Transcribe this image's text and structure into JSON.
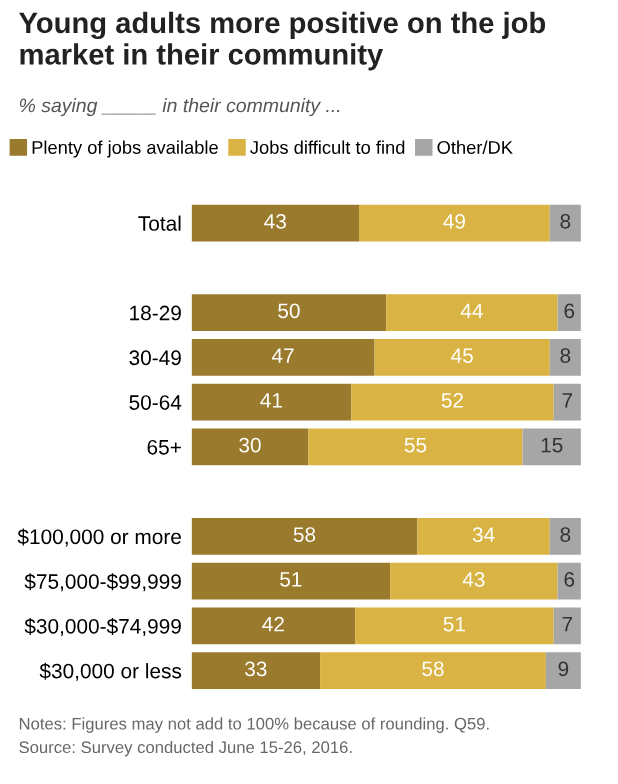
{
  "chart_data": {
    "type": "bar",
    "orientation": "horizontal",
    "stacked": true,
    "data_labels": true,
    "legend": "top",
    "grid": false,
    "title": "Young adults more positive on the job market in their community",
    "subtitle": "% saying _____ in their community ...",
    "categories": [
      "Total",
      null,
      "18-29",
      "30-49",
      "50-64",
      "65+",
      null,
      "$100,000 or more",
      "$75,000-$99,999",
      "$30,000-$74,999",
      "$30,000 or less"
    ],
    "series": [
      {
        "name": "Plenty of jobs available",
        "color": "#9a7b2e",
        "values": [
          43,
          null,
          50,
          47,
          41,
          30,
          null,
          58,
          51,
          42,
          33
        ]
      },
      {
        "name": "Jobs difficult to find",
        "color": "#d9b343",
        "values": [
          49,
          null,
          44,
          45,
          52,
          55,
          null,
          34,
          43,
          51,
          58
        ]
      },
      {
        "name": "Other/DK",
        "color": "#a6a6a6",
        "values": [
          8,
          null,
          6,
          8,
          7,
          15,
          null,
          8,
          6,
          7,
          9
        ]
      }
    ],
    "annotations": [
      "Notes: Figures may not add to 100% because of rounding. Q59.",
      "Source: Survey conducted June 15-26, 2016."
    ]
  }
}
